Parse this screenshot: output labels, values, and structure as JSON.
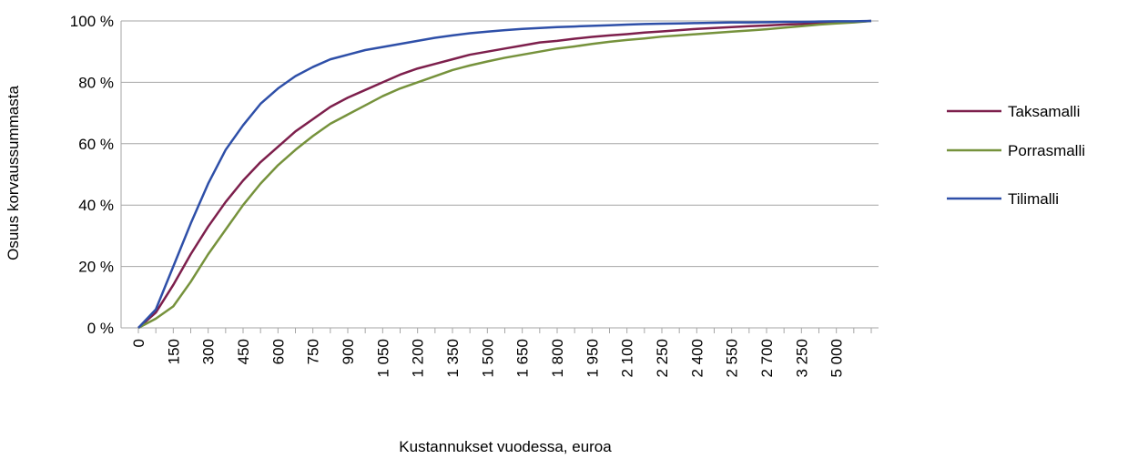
{
  "chart_data": {
    "type": "line",
    "y_label": "Osuus korvaussummasta",
    "x_label": "Kustannukset vuodessa, euroa",
    "categories": [
      "0",
      null,
      "150",
      null,
      "300",
      null,
      "450",
      null,
      "600",
      null,
      "750",
      null,
      "900",
      null,
      "1 050",
      null,
      "1 200",
      null,
      "1 350",
      null,
      "1 500",
      null,
      "1 650",
      null,
      "1 800",
      null,
      "1 950",
      null,
      "2 100",
      null,
      "2 250",
      null,
      "2 400",
      null,
      "2 550",
      null,
      "2 700",
      null,
      "3 250",
      null,
      "5 000",
      null,
      null
    ],
    "series": [
      {
        "name": "Taksamalli",
        "color": "#7d1f4c",
        "values": [
          0,
          5,
          14,
          24,
          33,
          41,
          48,
          54,
          59,
          64,
          68,
          72,
          75,
          77.5,
          80,
          82.5,
          84.5,
          86,
          87.5,
          89,
          90,
          91,
          92,
          93,
          93.5,
          94.2,
          94.8,
          95.3,
          95.7,
          96.2,
          96.6,
          97,
          97.4,
          97.7,
          98,
          98.3,
          98.5,
          98.8,
          99,
          99.3,
          99.5,
          99.7,
          100
        ]
      },
      {
        "name": "Porrasmalli",
        "color": "#76923c",
        "values": [
          0,
          3,
          7,
          15,
          24,
          32,
          40,
          47,
          53,
          58,
          62.5,
          66.5,
          69.5,
          72.5,
          75.5,
          78,
          80,
          82,
          84,
          85.5,
          86.8,
          88,
          89,
          90,
          91,
          91.7,
          92.5,
          93.2,
          93.8,
          94.3,
          94.9,
          95.3,
          95.7,
          96.1,
          96.5,
          96.9,
          97.3,
          97.8,
          98.3,
          98.8,
          99.2,
          99.5,
          100
        ]
      },
      {
        "name": "Tilimalli",
        "color": "#2e4fa8",
        "values": [
          0,
          6,
          20,
          34,
          47,
          58,
          66,
          73,
          78,
          82,
          85,
          87.5,
          89,
          90.5,
          91.5,
          92.5,
          93.5,
          94.5,
          95.3,
          96,
          96.5,
          97,
          97.4,
          97.7,
          98,
          98.2,
          98.4,
          98.6,
          98.8,
          99,
          99.1,
          99.2,
          99.3,
          99.4,
          99.5,
          99.5,
          99.6,
          99.7,
          99.7,
          99.8,
          99.9,
          99.9,
          100
        ]
      }
    ],
    "ylim": [
      0,
      100
    ],
    "yticks": [
      {
        "value": 0,
        "label": "0 %"
      },
      {
        "value": 20,
        "label": "20 %"
      },
      {
        "value": 40,
        "label": "40 %"
      },
      {
        "value": 60,
        "label": "60 %"
      },
      {
        "value": 80,
        "label": "80 %"
      },
      {
        "value": 100,
        "label": "100 %"
      }
    ],
    "grid": true,
    "legend": "right"
  }
}
